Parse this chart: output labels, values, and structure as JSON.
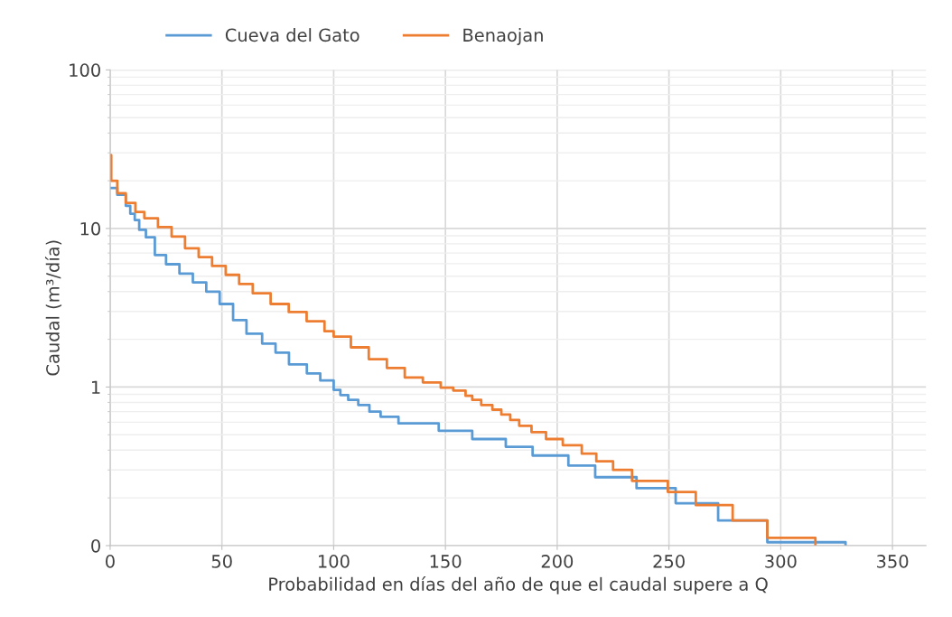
{
  "chart_data": {
    "type": "step",
    "xlabel": "Probabilidad en días del año de que el caudal supere a Q",
    "ylabel": "Caudal (m³/día)",
    "log": "y",
    "grid": true,
    "legend": "top left",
    "line_style": "solid",
    "marker": "none",
    "xlim": [
      0,
      365
    ],
    "xticks": [
      0,
      50,
      100,
      150,
      200,
      250,
      300,
      350
    ],
    "ylim": [
      0.1,
      100
    ],
    "yticks": [
      {
        "value": 0.1,
        "label": "0"
      },
      1,
      10,
      100
    ],
    "series": [
      {
        "name": "Cueva del Gato",
        "color": "#5b9bd5",
        "x": [
          0,
          3.2,
          7,
          9,
          11,
          13,
          16,
          20,
          25,
          31,
          37,
          43,
          49,
          55,
          61,
          68,
          74,
          80,
          88,
          94,
          100,
          103,
          106.5,
          111,
          116,
          121,
          129,
          147,
          162,
          177,
          189,
          205,
          217,
          235.5,
          253,
          272,
          294,
          329
        ],
        "values": [
          18,
          16.3,
          13.9,
          12.4,
          11.3,
          9.8,
          8.8,
          6.8,
          5.95,
          5.2,
          4.57,
          4.0,
          3.34,
          2.64,
          2.17,
          1.88,
          1.65,
          1.39,
          1.22,
          1.1,
          0.96,
          0.89,
          0.83,
          0.77,
          0.7,
          0.65,
          0.59,
          0.53,
          0.47,
          0.42,
          0.37,
          0.32,
          0.27,
          0.23,
          0.185,
          0.144,
          0.105,
          0.1
        ]
      },
      {
        "name": "Benaojan",
        "color": "#ed7d31",
        "x": [
          0,
          0.5,
          3.2,
          7,
          11.3,
          15.3,
          21.4,
          27.5,
          33.5,
          39.6,
          45.6,
          51.7,
          57.7,
          63.8,
          71.8,
          79.9,
          87.9,
          95.9,
          100,
          107.7,
          115.7,
          123.8,
          131.8,
          139.9,
          147.9,
          153.5,
          159,
          162,
          166,
          171,
          175,
          179,
          183,
          188.5,
          195,
          202.5,
          211,
          217.5,
          225,
          233.5,
          249.5,
          262,
          278.5,
          294,
          315.5
        ],
        "values": [
          29,
          20,
          16.7,
          14.5,
          12.7,
          11.6,
          10.2,
          8.9,
          7.5,
          6.6,
          5.8,
          5.1,
          4.46,
          3.9,
          3.34,
          2.97,
          2.6,
          2.25,
          2.08,
          1.78,
          1.5,
          1.32,
          1.15,
          1.07,
          0.99,
          0.95,
          0.88,
          0.83,
          0.77,
          0.72,
          0.67,
          0.62,
          0.57,
          0.52,
          0.47,
          0.43,
          0.38,
          0.34,
          0.3,
          0.256,
          0.218,
          0.18,
          0.144,
          0.112,
          0.1
        ]
      }
    ]
  }
}
